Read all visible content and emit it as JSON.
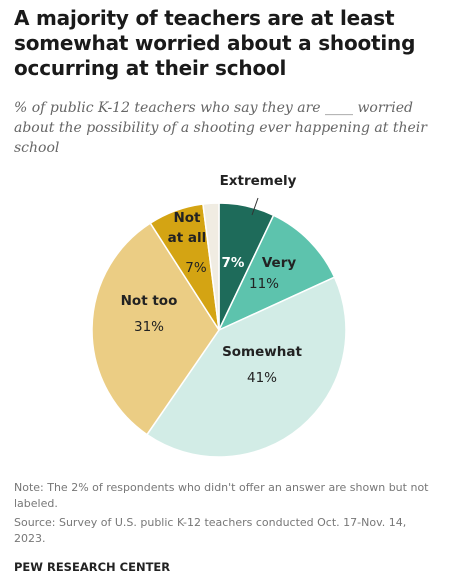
{
  "header": {
    "title": "A majority of teachers are at least somewhat worried about a shooting occurring at their school",
    "subtitle": "% of public K-12 teachers who say they are ____ worried about the possibility of a shooting ever happening at their school"
  },
  "chart_data": {
    "type": "pie",
    "slices": [
      {
        "label": "Extremely",
        "value": 7,
        "value_label": "7%",
        "color": "#1e6b5a"
      },
      {
        "label": "Very",
        "value": 11,
        "value_label": "11%",
        "color": "#5dc3ad"
      },
      {
        "label": "Somewhat",
        "value": 41,
        "value_label": "41%",
        "color": "#d2ece6"
      },
      {
        "label": "Not too",
        "value": 31,
        "value_label": "31%",
        "color": "#ebcd84"
      },
      {
        "label_lines": [
          "Not",
          "at all"
        ],
        "value": 7,
        "value_label": "7%",
        "color": "#d4a413"
      },
      {
        "label": "",
        "value": 2,
        "value_label": "",
        "color": "#f0ece2"
      }
    ]
  },
  "footer": {
    "note": "Note: The 2% of respondents who didn't offer an answer are shown but not labeled.",
    "source": "Source: Survey of U.S. public K-12 teachers conducted Oct. 17-Nov. 14, 2023.",
    "org": "PEW RESEARCH CENTER"
  }
}
